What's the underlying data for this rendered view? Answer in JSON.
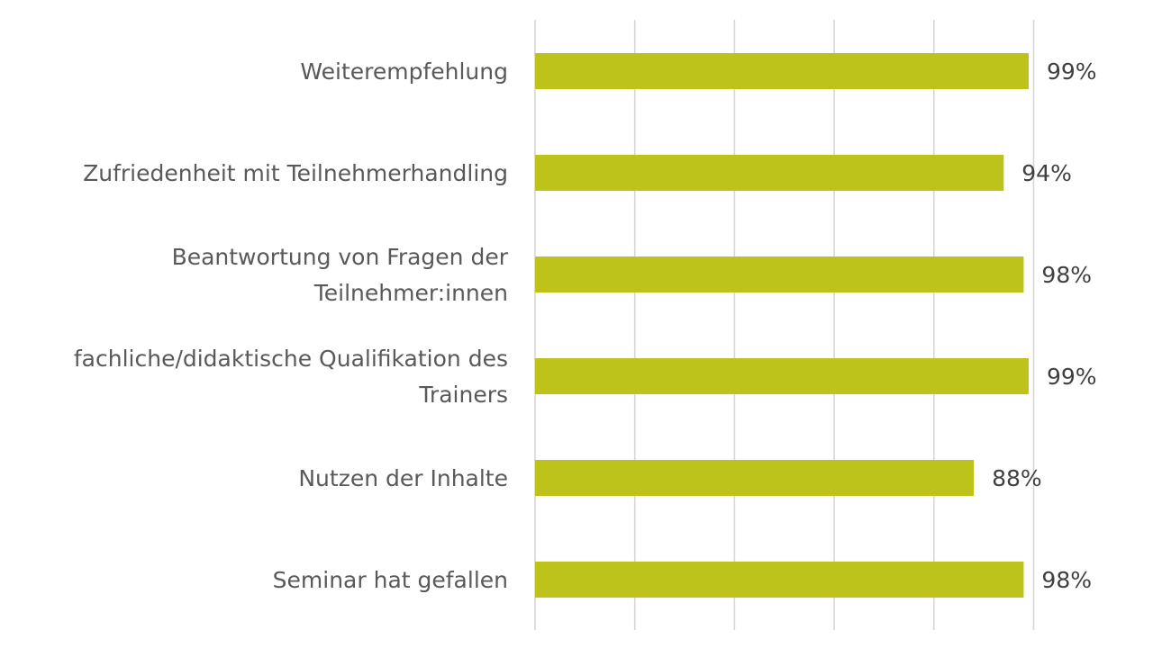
{
  "chart_data": {
    "type": "bar",
    "orientation": "horizontal",
    "categories": [
      "Weiterempfehlung",
      "Zufriedenheit mit Teilnehmerhandling",
      "Beantwortung von Fragen der Teilnehmer:innen",
      "fachliche/didaktische Qualifikation des Trainers",
      "Nutzen der Inhalte",
      "Seminar hat gefallen"
    ],
    "category_lines": [
      [
        "Weiterempfehlung"
      ],
      [
        "Zufriedenheit mit Teilnehmerhandling"
      ],
      [
        "Beantwortung von Fragen der",
        "Teilnehmer:innen"
      ],
      [
        "fachliche/didaktische Qualifikation des",
        "Trainers"
      ],
      [
        "Nutzen der Inhalte"
      ],
      [
        "Seminar hat gefallen"
      ]
    ],
    "values": [
      99,
      94,
      98,
      99,
      88,
      98
    ],
    "value_labels": [
      "99%",
      "94%",
      "98%",
      "99%",
      "88%",
      "98%"
    ],
    "xlim": [
      0,
      100
    ],
    "x_gridlines": [
      0,
      20,
      40,
      60,
      80,
      100
    ],
    "grid": true,
    "legend": "none",
    "title": "",
    "xlabel": "",
    "ylabel": "",
    "colors": {
      "bar": "#bdc31a",
      "grid": "#d6d6d6",
      "category_text": "#595959",
      "value_text": "#404040"
    }
  }
}
